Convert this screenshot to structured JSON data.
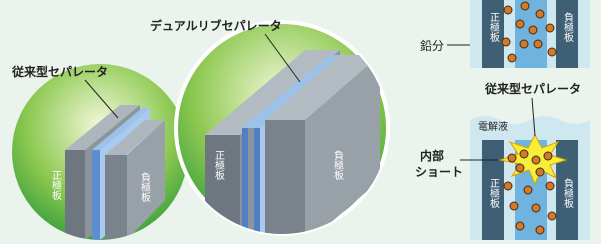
{
  "left_illustration": {
    "callout": "従来型セパレータ",
    "positive_plate": "正極板",
    "negative_plate": "負極板"
  },
  "center_illustration": {
    "callout": "デュアルリブセパレータ",
    "positive_plate": "正極板",
    "negative_plate": "負極板"
  },
  "right_top": {
    "callout": "鉛分",
    "positive_plate": "正極板",
    "negative_plate": "負極板"
  },
  "right_bottom": {
    "callout": "従来型セパレータ",
    "electrolyte": "電解液",
    "internal_short": [
      "内部",
      "ショート"
    ],
    "positive_plate": "正極板",
    "negative_plate": "負極板"
  }
}
